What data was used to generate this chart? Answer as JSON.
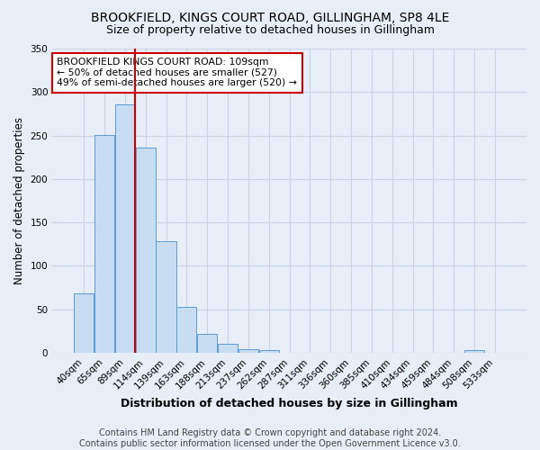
{
  "title": "BROOKFIELD, KINGS COURT ROAD, GILLINGHAM, SP8 4LE",
  "subtitle": "Size of property relative to detached houses in Gillingham",
  "xlabel": "Distribution of detached houses by size in Gillingham",
  "ylabel": "Number of detached properties",
  "bar_labels": [
    "40sqm",
    "65sqm",
    "89sqm",
    "114sqm",
    "139sqm",
    "163sqm",
    "188sqm",
    "213sqm",
    "237sqm",
    "262sqm",
    "287sqm",
    "311sqm",
    "336sqm",
    "360sqm",
    "385sqm",
    "410sqm",
    "434sqm",
    "459sqm",
    "484sqm",
    "508sqm",
    "533sqm"
  ],
  "bar_values": [
    68,
    251,
    286,
    236,
    128,
    53,
    22,
    10,
    4,
    3,
    0,
    0,
    0,
    0,
    0,
    0,
    0,
    0,
    0,
    3,
    0
  ],
  "bar_color": "#c9ddf2",
  "bar_edge_color": "#5b9bd5",
  "grid_color": "#c8d4e8",
  "bg_color": "#e8eef8",
  "vline_x": 3.0,
  "vline_color": "#cc0000",
  "annotation_text": "BROOKFIELD KINGS COURT ROAD: 109sqm\n← 50% of detached houses are smaller (527)\n49% of semi-detached houses are larger (520) →",
  "annotation_box_color": "#ffffff",
  "annotation_box_edge": "#cc0000",
  "footer": "Contains HM Land Registry data © Crown copyright and database right 2024.\nContains public sector information licensed under the Open Government Licence v3.0.",
  "ylim": [
    0,
    350
  ],
  "yticks": [
    0,
    50,
    100,
    150,
    200,
    250,
    300,
    350
  ],
  "title_fontsize": 10,
  "subtitle_fontsize": 9
}
